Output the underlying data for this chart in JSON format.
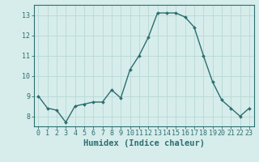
{
  "x": [
    0,
    1,
    2,
    3,
    4,
    5,
    6,
    7,
    8,
    9,
    10,
    11,
    12,
    13,
    14,
    15,
    16,
    17,
    18,
    19,
    20,
    21,
    22,
    23
  ],
  "y": [
    9.0,
    8.4,
    8.3,
    7.7,
    8.5,
    8.6,
    8.7,
    8.7,
    9.3,
    8.9,
    10.3,
    11.0,
    11.9,
    13.1,
    13.1,
    13.1,
    12.9,
    12.4,
    11.0,
    9.7,
    8.8,
    8.4,
    8.0,
    8.4
  ],
  "line_color": "#2d6e6e",
  "marker": "D",
  "marker_size": 2.0,
  "bg_color": "#d6edec",
  "grid_color": "#b8d8d6",
  "xlabel": "Humidex (Indice chaleur)",
  "xlim": [
    -0.5,
    23.5
  ],
  "ylim": [
    7.5,
    13.5
  ],
  "yticks": [
    8,
    9,
    10,
    11,
    12,
    13
  ],
  "xticks": [
    0,
    1,
    2,
    3,
    4,
    5,
    6,
    7,
    8,
    9,
    10,
    11,
    12,
    13,
    14,
    15,
    16,
    17,
    18,
    19,
    20,
    21,
    22,
    23
  ],
  "tick_label_size": 6.0,
  "xlabel_size": 7.5,
  "axis_color": "#2d6e6e",
  "tick_color": "#2d6e6e",
  "line_width": 1.0
}
